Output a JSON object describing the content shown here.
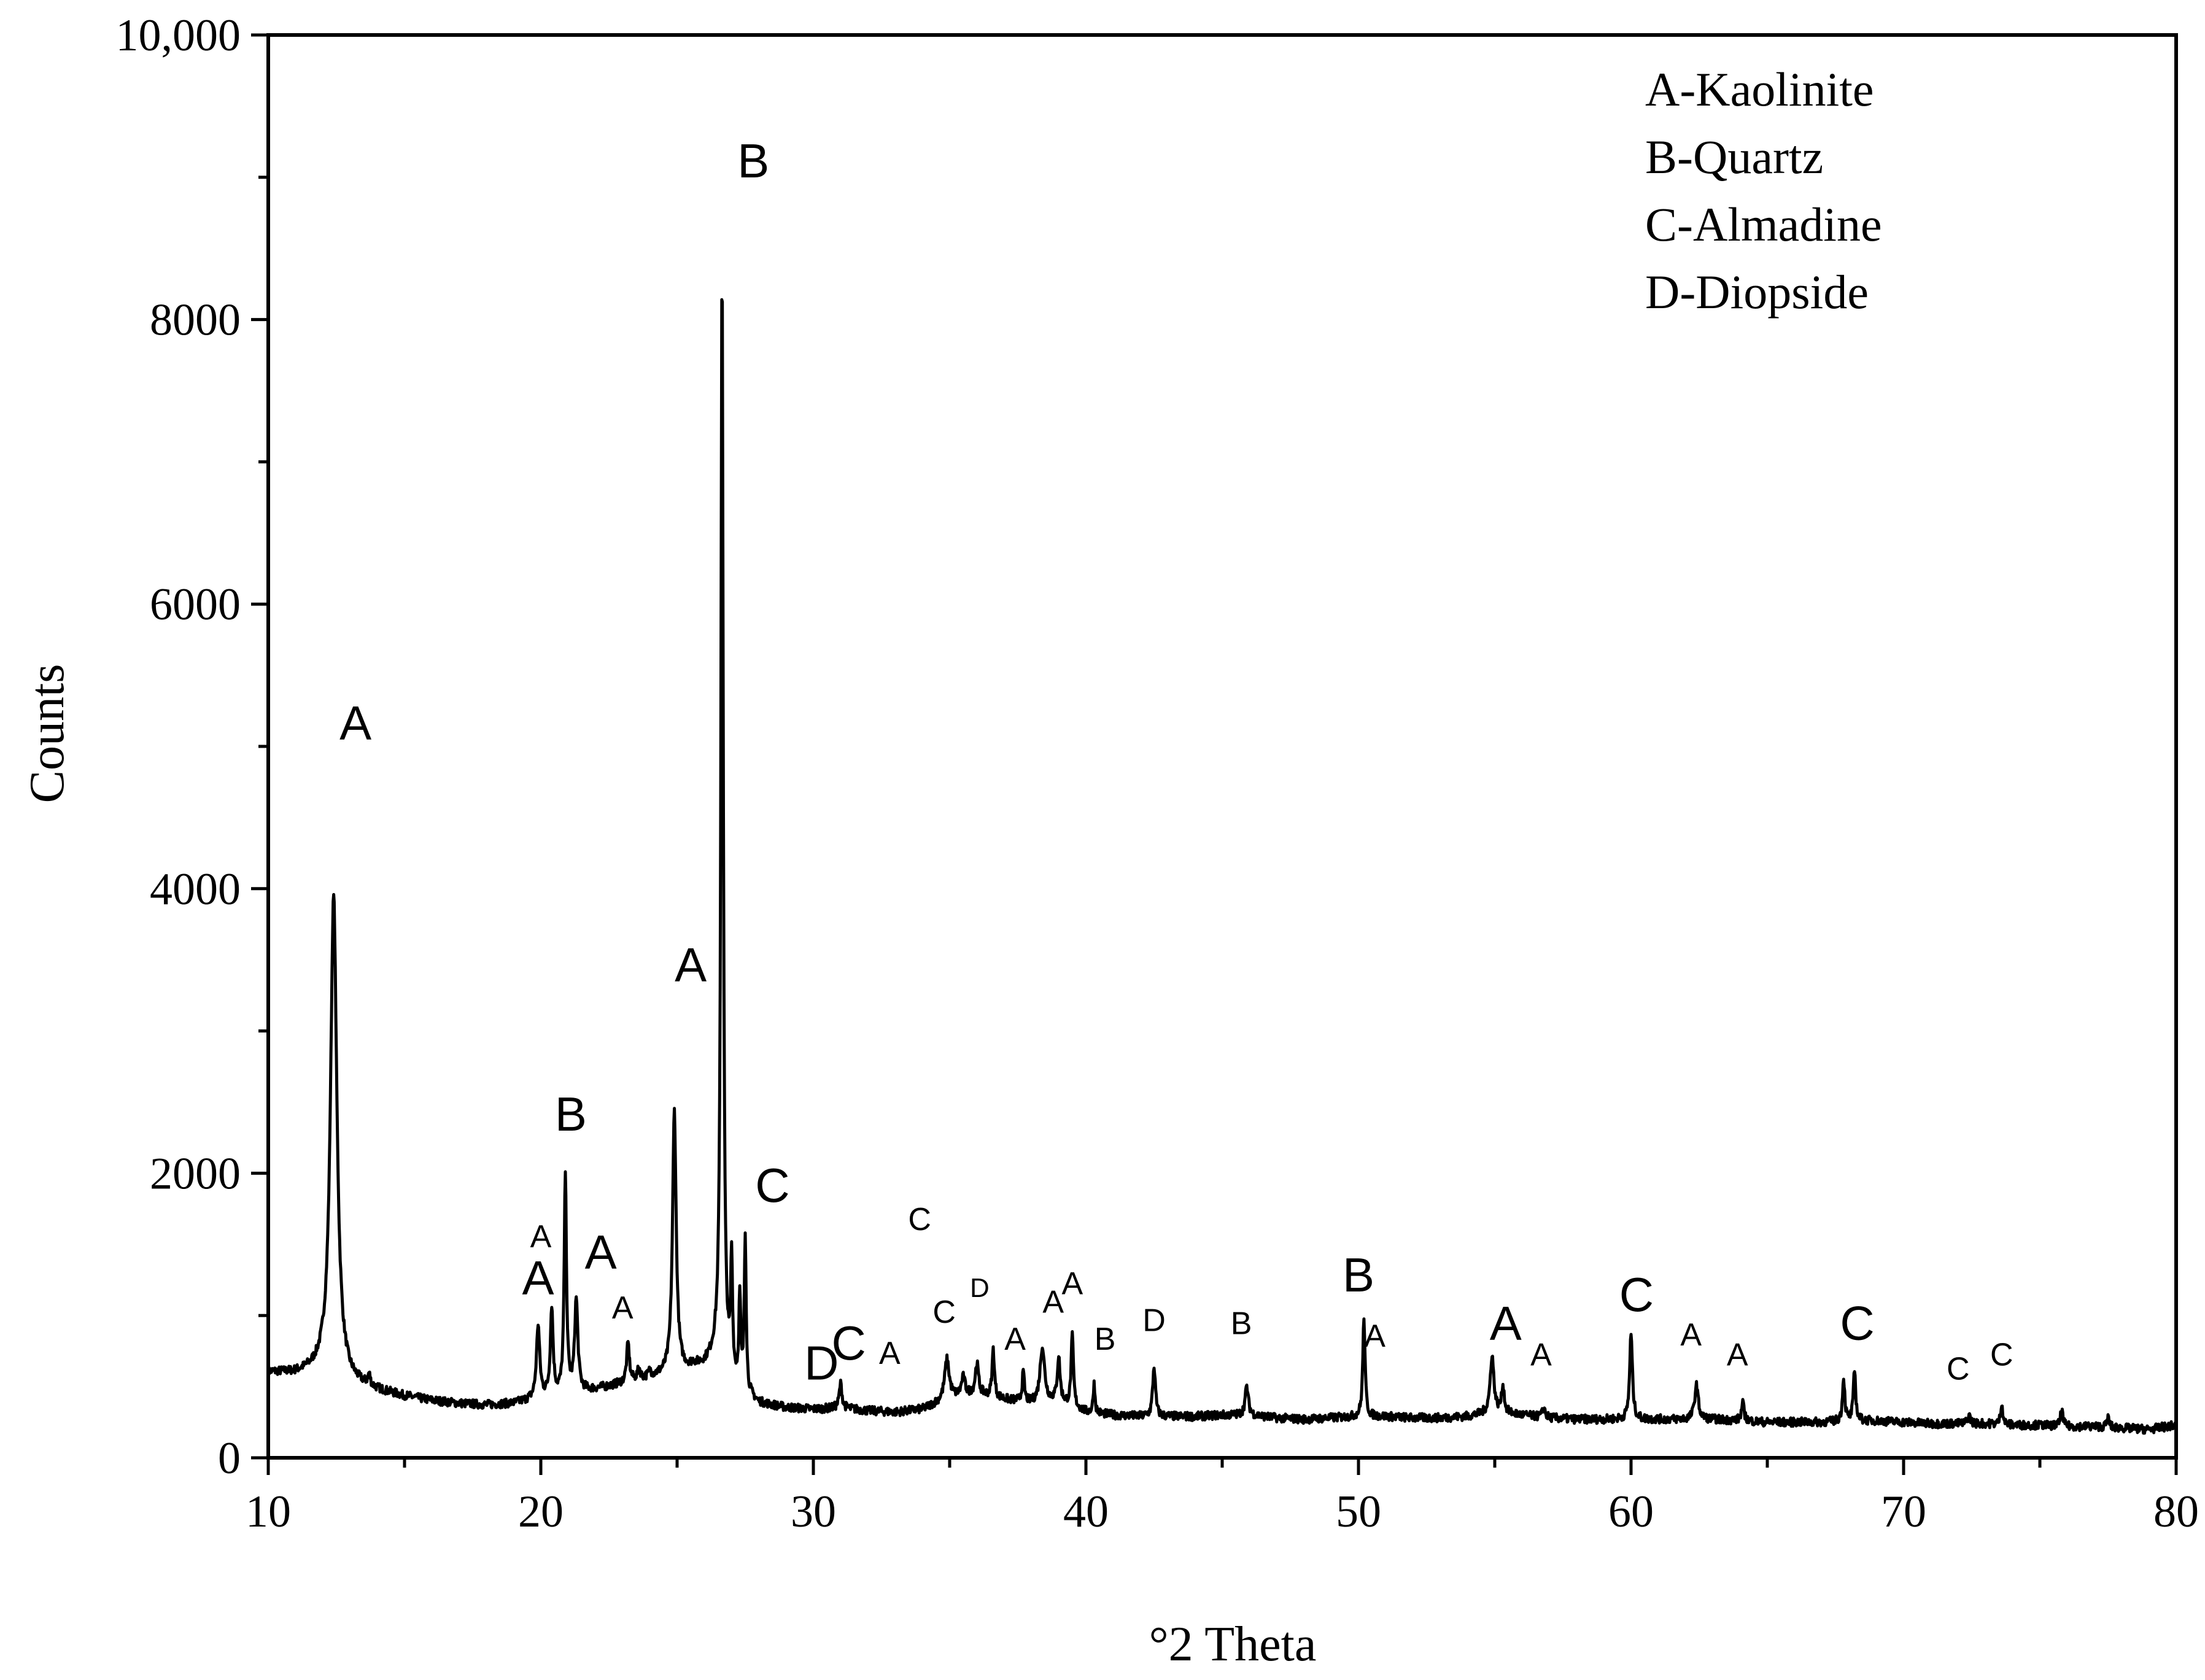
{
  "chart_data": {
    "type": "line",
    "xlabel": "°2 Theta",
    "ylabel": "Counts",
    "xlim": [
      10,
      80
    ],
    "ylim": [
      0,
      10000
    ],
    "x_ticks": [
      10,
      20,
      30,
      40,
      50,
      60,
      70,
      80
    ],
    "x_tick_labels": [
      "10",
      "20",
      "30",
      "40",
      "50",
      "60",
      "70",
      "80"
    ],
    "y_ticks": [
      0,
      2000,
      4000,
      6000,
      8000,
      10000
    ],
    "y_tick_labels": [
      "0",
      "2000",
      "4000",
      "6000",
      "8000",
      "10,000"
    ],
    "grid": false,
    "legend_position": "top-right",
    "legend": [
      "A-Kaolinite",
      "B-Quartz",
      "C-Almadine",
      "D-Diopside"
    ],
    "baseline": [
      [
        10,
        600
      ],
      [
        11,
        590
      ],
      [
        12,
        610
      ],
      [
        13,
        520
      ],
      [
        14,
        470
      ],
      [
        15,
        430
      ],
      [
        16,
        400
      ],
      [
        17,
        380
      ],
      [
        18,
        370
      ],
      [
        19,
        380
      ],
      [
        20,
        420
      ],
      [
        22,
        480
      ],
      [
        24,
        560
      ],
      [
        26,
        650
      ],
      [
        26.4,
        700
      ],
      [
        27,
        520
      ],
      [
        28,
        380
      ],
      [
        29,
        350
      ],
      [
        30,
        340
      ],
      [
        31,
        350
      ],
      [
        32,
        330
      ],
      [
        33,
        320
      ],
      [
        34,
        340
      ],
      [
        35,
        420
      ],
      [
        36,
        450
      ],
      [
        37,
        410
      ],
      [
        38,
        380
      ],
      [
        39,
        400
      ],
      [
        40,
        320
      ],
      [
        41,
        300
      ],
      [
        42,
        290
      ],
      [
        43,
        290
      ],
      [
        44,
        290
      ],
      [
        45,
        300
      ],
      [
        46,
        300
      ],
      [
        47,
        280
      ],
      [
        48,
        270
      ],
      [
        49,
        280
      ],
      [
        50,
        290
      ],
      [
        51,
        290
      ],
      [
        52,
        280
      ],
      [
        53,
        280
      ],
      [
        54,
        290
      ],
      [
        55,
        320
      ],
      [
        56,
        300
      ],
      [
        57,
        280
      ],
      [
        58,
        270
      ],
      [
        59,
        270
      ],
      [
        60,
        270
      ],
      [
        61,
        270
      ],
      [
        62,
        270
      ],
      [
        63,
        270
      ],
      [
        64,
        260
      ],
      [
        65,
        250
      ],
      [
        66,
        250
      ],
      [
        67,
        250
      ],
      [
        68,
        260
      ],
      [
        69,
        260
      ],
      [
        70,
        250
      ],
      [
        71,
        240
      ],
      [
        72,
        240
      ],
      [
        73,
        240
      ],
      [
        74,
        230
      ],
      [
        75,
        230
      ],
      [
        76,
        220
      ],
      [
        77,
        220
      ],
      [
        78,
        210
      ],
      [
        79,
        200
      ],
      [
        80,
        230
      ]
    ],
    "peaks": [
      {
        "x": 12.4,
        "y": 3950,
        "w": 0.14
      },
      {
        "x": 13.7,
        "y": 560,
        "w": 0.05
      },
      {
        "x": 19.9,
        "y": 930,
        "w": 0.07
      },
      {
        "x": 20.4,
        "y": 1050,
        "w": 0.06
      },
      {
        "x": 20.9,
        "y": 1990,
        "w": 0.05
      },
      {
        "x": 21.3,
        "y": 1100,
        "w": 0.07
      },
      {
        "x": 23.2,
        "y": 800,
        "w": 0.06
      },
      {
        "x": 23.6,
        "y": 620,
        "w": 0.06
      },
      {
        "x": 24.0,
        "y": 600,
        "w": 0.06
      },
      {
        "x": 24.9,
        "y": 2440,
        "w": 0.08
      },
      {
        "x": 25.6,
        "y": 650,
        "w": 0.06
      },
      {
        "x": 26.65,
        "y": 8420,
        "w": 0.05
      },
      {
        "x": 27.0,
        "y": 1350,
        "w": 0.04
      },
      {
        "x": 27.3,
        "y": 1100,
        "w": 0.04
      },
      {
        "x": 27.5,
        "y": 1550,
        "w": 0.04
      },
      {
        "x": 31.0,
        "y": 520,
        "w": 0.06
      },
      {
        "x": 34.9,
        "y": 690,
        "w": 0.1
      },
      {
        "x": 35.5,
        "y": 560,
        "w": 0.08
      },
      {
        "x": 36.0,
        "y": 660,
        "w": 0.07
      },
      {
        "x": 36.6,
        "y": 760,
        "w": 0.05
      },
      {
        "x": 37.7,
        "y": 590,
        "w": 0.05
      },
      {
        "x": 38.4,
        "y": 780,
        "w": 0.1
      },
      {
        "x": 39.0,
        "y": 700,
        "w": 0.06
      },
      {
        "x": 39.5,
        "y": 850,
        "w": 0.05
      },
      {
        "x": 40.3,
        "y": 520,
        "w": 0.04
      },
      {
        "x": 42.5,
        "y": 640,
        "w": 0.06
      },
      {
        "x": 45.9,
        "y": 500,
        "w": 0.07
      },
      {
        "x": 50.2,
        "y": 980,
        "w": 0.05
      },
      {
        "x": 54.9,
        "y": 720,
        "w": 0.08
      },
      {
        "x": 55.3,
        "y": 500,
        "w": 0.06
      },
      {
        "x": 56.8,
        "y": 350,
        "w": 0.06
      },
      {
        "x": 60.0,
        "y": 870,
        "w": 0.06
      },
      {
        "x": 62.4,
        "y": 510,
        "w": 0.08
      },
      {
        "x": 64.1,
        "y": 380,
        "w": 0.06
      },
      {
        "x": 67.8,
        "y": 560,
        "w": 0.05
      },
      {
        "x": 68.2,
        "y": 610,
        "w": 0.05
      },
      {
        "x": 72.4,
        "y": 300,
        "w": 0.06
      },
      {
        "x": 73.6,
        "y": 380,
        "w": 0.05
      },
      {
        "x": 75.8,
        "y": 340,
        "w": 0.05
      },
      {
        "x": 77.5,
        "y": 280,
        "w": 0.05
      }
    ],
    "annotations": [
      {
        "text": "B",
        "x": 27.8,
        "y": 9000,
        "size": "large"
      },
      {
        "text": "A",
        "x": 13.2,
        "y": 5050,
        "size": "large"
      },
      {
        "text": "A",
        "x": 25.5,
        "y": 3350,
        "size": "large"
      },
      {
        "text": "B",
        "x": 21.1,
        "y": 2300,
        "size": "large"
      },
      {
        "text": "C",
        "x": 28.5,
        "y": 1800,
        "size": "large"
      },
      {
        "text": "C",
        "x": 33.9,
        "y": 1600,
        "size": "small"
      },
      {
        "text": "A",
        "x": 20.0,
        "y": 1480,
        "size": "small"
      },
      {
        "text": "A",
        "x": 22.2,
        "y": 1330,
        "size": "large"
      },
      {
        "text": "A",
        "x": 19.9,
        "y": 1150,
        "size": "large"
      },
      {
        "text": "A",
        "x": 23.0,
        "y": 980,
        "size": "small"
      },
      {
        "text": "D",
        "x": 36.1,
        "y": 1130,
        "size": "xsmall"
      },
      {
        "text": "A",
        "x": 39.5,
        "y": 1150,
        "size": "small"
      },
      {
        "text": "A",
        "x": 38.8,
        "y": 1020,
        "size": "small"
      },
      {
        "text": "C",
        "x": 34.8,
        "y": 950,
        "size": "small"
      },
      {
        "text": "A",
        "x": 37.4,
        "y": 760,
        "size": "small"
      },
      {
        "text": "B",
        "x": 40.7,
        "y": 760,
        "size": "small"
      },
      {
        "text": "D",
        "x": 42.5,
        "y": 890,
        "size": "small"
      },
      {
        "text": "B",
        "x": 45.7,
        "y": 870,
        "size": "small"
      },
      {
        "text": "B",
        "x": 50.0,
        "y": 1170,
        "size": "large"
      },
      {
        "text": "A",
        "x": 50.6,
        "y": 780,
        "size": "small"
      },
      {
        "text": "A",
        "x": 55.4,
        "y": 830,
        "size": "large"
      },
      {
        "text": "A",
        "x": 56.7,
        "y": 650,
        "size": "small"
      },
      {
        "text": "C",
        "x": 60.2,
        "y": 1030,
        "size": "large"
      },
      {
        "text": "A",
        "x": 62.2,
        "y": 790,
        "size": "small"
      },
      {
        "text": "A",
        "x": 63.9,
        "y": 650,
        "size": "small"
      },
      {
        "text": "C",
        "x": 68.3,
        "y": 830,
        "size": "large"
      },
      {
        "text": "C",
        "x": 72.0,
        "y": 550,
        "size": "small"
      },
      {
        "text": "C",
        "x": 73.6,
        "y": 650,
        "size": "small"
      },
      {
        "text": "D",
        "x": 30.3,
        "y": 550,
        "size": "large"
      },
      {
        "text": "C",
        "x": 31.3,
        "y": 690,
        "size": "large"
      },
      {
        "text": "A",
        "x": 32.8,
        "y": 660,
        "size": "small"
      }
    ]
  }
}
